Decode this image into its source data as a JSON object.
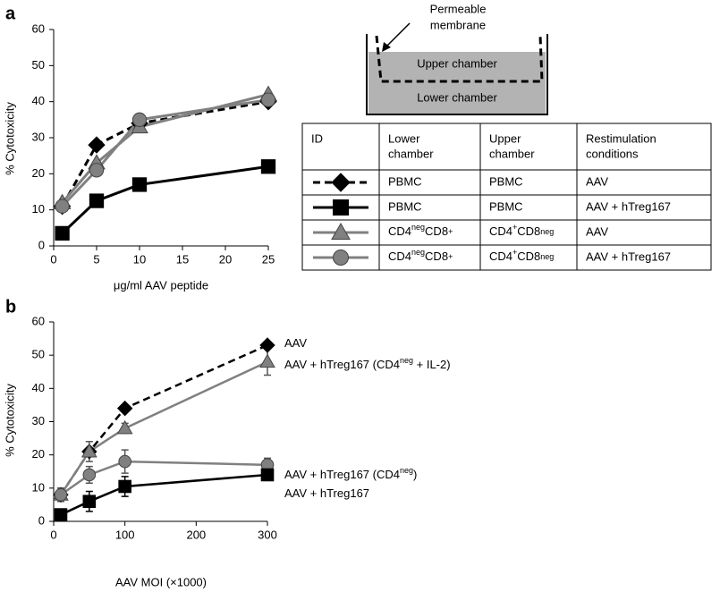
{
  "panel_labels": [
    "a",
    "b"
  ],
  "chart_data": [
    {
      "type": "line",
      "ylabel": "% Cytotoxicity",
      "xlabel": "μg/ml AAV peptide",
      "x": [
        1,
        5,
        10,
        25
      ],
      "xlim": [
        0,
        25
      ],
      "xticks": [
        0,
        5,
        10,
        15,
        20,
        25
      ],
      "ylim": [
        0,
        60
      ],
      "yticks": [
        0,
        10,
        20,
        30,
        40,
        50,
        60
      ],
      "series": [
        {
          "color": "#000000",
          "marker": "diamond",
          "line_style": "dashed",
          "values": [
            11,
            28,
            34,
            40
          ]
        },
        {
          "color": "#000000",
          "marker": "square",
          "line_style": "solid",
          "values": [
            3.5,
            12.5,
            17,
            22
          ]
        },
        {
          "color": "#808080",
          "marker": "triangle",
          "line_style": "solid",
          "values": [
            12,
            23,
            33,
            42
          ]
        },
        {
          "color": "#808080",
          "marker": "circle",
          "line_style": "solid",
          "values": [
            11,
            21,
            35,
            40.5
          ]
        }
      ]
    },
    {
      "type": "line",
      "ylabel": "% Cytotoxicity",
      "xlabel": "AAV MOI (×1000)",
      "x": [
        10,
        50,
        100,
        300
      ],
      "xlim": [
        0,
        300
      ],
      "xticks": [
        0,
        100,
        200,
        300
      ],
      "ylim": [
        0,
        60
      ],
      "yticks": [
        0,
        10,
        20,
        30,
        40,
        50,
        60
      ],
      "series": [
        {
          "name": [
            {
              "text": "AAV"
            }
          ],
          "color": "#000000",
          "marker": "diamond",
          "line_style": "dashed",
          "values": [
            8,
            21,
            34,
            53
          ]
        },
        {
          "name": [
            {
              "text": "AAV + hTreg167 (CD4"
            },
            {
              "text": "neg",
              "sup": true
            },
            {
              "text": " + IL-2)"
            }
          ],
          "color": "#808080",
          "marker": "triangle",
          "line_style": "solid",
          "values": [
            8,
            21,
            28,
            48
          ],
          "errors": [
            2,
            3,
            1.5,
            4
          ]
        },
        {
          "name": [
            {
              "text": "AAV + hTreg167 (CD4"
            },
            {
              "text": "neg",
              "sup": true
            },
            {
              "text": ")"
            }
          ],
          "color": "#808080",
          "marker": "circle",
          "line_style": "solid",
          "values": [
            8,
            14,
            18,
            17
          ],
          "errors": [
            2,
            2.5,
            3.5,
            2
          ]
        },
        {
          "name": [
            {
              "text": "AAV + hTreg167"
            }
          ],
          "color": "#000000",
          "marker": "square",
          "line_style": "solid",
          "values": [
            2,
            6,
            10.5,
            14
          ],
          "errors": [
            1.5,
            3,
            3,
            1
          ]
        }
      ]
    }
  ],
  "diagram": {
    "membrane_label": [
      "Permeable",
      "membrane"
    ],
    "upper": "Upper chamber",
    "lower": "Lower chamber"
  },
  "table": {
    "header": [
      [
        "ID"
      ],
      [
        "Lower",
        "chamber"
      ],
      [
        "Upper",
        "chamber"
      ],
      [
        "Restimulation",
        "conditions"
      ]
    ],
    "rows": [
      [
        "PBMC",
        "PBMC",
        "AAV"
      ],
      [
        "PBMC",
        "PBMC",
        "AAV + hTreg167"
      ],
      [
        [
          {
            "text": "CD4"
          },
          {
            "text": "neg",
            "sup": true
          },
          {
            "text": "CD8"
          },
          {
            "text": "+",
            "sup": true
          }
        ],
        [
          {
            "text": "CD4"
          },
          {
            "text": "+",
            "sup": true
          },
          {
            "text": "CD8"
          },
          {
            "text": "neg",
            "sup": true
          }
        ],
        "AAV"
      ],
      [
        [
          {
            "text": "CD4"
          },
          {
            "text": "neg",
            "sup": true
          },
          {
            "text": "CD8"
          },
          {
            "text": "+",
            "sup": true
          }
        ],
        [
          {
            "text": "CD4"
          },
          {
            "text": "+",
            "sup": true
          },
          {
            "text": "CD8"
          },
          {
            "text": "neg",
            "sup": true
          }
        ],
        "AAV + hTreg167"
      ]
    ]
  }
}
